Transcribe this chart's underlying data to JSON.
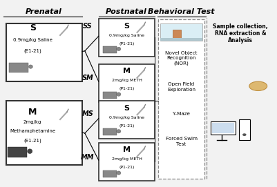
{
  "background_color": "#f2f2f2",
  "prenatal_title": "Prenatal",
  "postnatal_title": "Postnatal",
  "behavioral_title": "Behavioral Test",
  "behavioral_tests": [
    "Novel Object\nRecognition\n(NOR)",
    "Open Field\nExploration",
    "Y-Maze",
    "Forced Swim\nTest"
  ],
  "sample_collection_text": "Sample collection,\nRNA extraction &\nAnalysis",
  "group_labels": [
    "SS",
    "SM",
    "MS",
    "MM"
  ],
  "prenatal_s_label": "S",
  "prenatal_s_dose": "0.9mg/kg Saline",
  "prenatal_s_period": "(E1-21)",
  "prenatal_m_label": "M",
  "prenatal_m_dose": "2mg/kg",
  "prenatal_m_dose2": "Methamphetamine",
  "prenatal_m_period": "(E1-21)",
  "post_labels": [
    "S",
    "M",
    "S",
    "M"
  ],
  "post_doses": [
    "0.9mg/kg Saline",
    "2mg/kg METH",
    "0.9mg/kg Saline",
    "2mg/kg METH"
  ],
  "post_periods": [
    "(P1-21)",
    "(P1-21)",
    "(P1-21)",
    "(P1-21)"
  ]
}
